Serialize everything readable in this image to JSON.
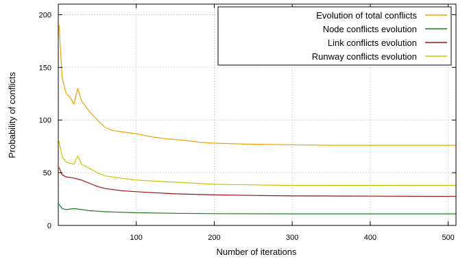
{
  "chart_data": {
    "type": "line",
    "title": "",
    "xlabel": "Number of iterations",
    "ylabel": "Probability of conflicts",
    "xlim": [
      0,
      510
    ],
    "ylim": [
      0,
      210
    ],
    "xticks": [
      100,
      200,
      300,
      400,
      500
    ],
    "yticks": [
      0,
      50,
      100,
      150,
      200
    ],
    "grid": true,
    "legend_position": "top-right",
    "series": [
      {
        "name": "Evolution of total conflicts",
        "color": "#f0a000",
        "x": [
          1,
          5,
          10,
          15,
          20,
          25,
          30,
          40,
          50,
          60,
          70,
          80,
          90,
          100,
          120,
          140,
          160,
          180,
          200,
          250,
          300,
          350,
          400,
          450,
          510
        ],
        "y": [
          190,
          140,
          125,
          122,
          115,
          130,
          118,
          108,
          100,
          93,
          90,
          89,
          88,
          87,
          84,
          82,
          81,
          79,
          78,
          77,
          76.5,
          76,
          76,
          76,
          76
        ]
      },
      {
        "name": "Node conflicts evolution",
        "color": "#1a7a1a",
        "x": [
          1,
          5,
          10,
          20,
          30,
          40,
          50,
          60,
          80,
          100,
          150,
          200,
          300,
          400,
          510
        ],
        "y": [
          20,
          16,
          15,
          16,
          15,
          14,
          13.5,
          13,
          12.5,
          12,
          11.5,
          11.2,
          11,
          11,
          11
        ]
      },
      {
        "name": "Link conflicts evolution",
        "color": "#a01010",
        "x": [
          1,
          5,
          10,
          20,
          30,
          40,
          50,
          60,
          80,
          100,
          150,
          200,
          250,
          300,
          400,
          510
        ],
        "y": [
          55,
          48,
          46,
          45,
          43,
          40,
          37,
          35,
          33,
          32,
          30,
          29,
          28.5,
          28,
          27.8,
          27.5
        ]
      },
      {
        "name": "Runway conflicts evolution",
        "color": "#c8c800",
        "x": [
          1,
          5,
          10,
          20,
          25,
          30,
          40,
          50,
          60,
          80,
          100,
          150,
          200,
          250,
          300,
          400,
          510
        ],
        "y": [
          80,
          65,
          60,
          58,
          66,
          58,
          54,
          50,
          47,
          45,
          43,
          41,
          39,
          38.5,
          38,
          38,
          38
        ]
      }
    ]
  }
}
